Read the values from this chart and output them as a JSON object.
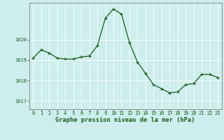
{
  "x": [
    0,
    1,
    2,
    3,
    4,
    5,
    6,
    7,
    8,
    9,
    10,
    11,
    12,
    13,
    14,
    15,
    16,
    17,
    18,
    19,
    20,
    21,
    22,
    23
  ],
  "y": [
    1019.1,
    1019.5,
    1019.35,
    1019.1,
    1019.05,
    1019.05,
    1019.15,
    1019.2,
    1019.7,
    1021.05,
    1021.5,
    1021.25,
    1019.85,
    1018.9,
    1018.35,
    1017.8,
    1017.6,
    1017.4,
    1017.45,
    1017.8,
    1017.85,
    1018.3,
    1018.3,
    1018.15
  ],
  "yticks": [
    1017,
    1018,
    1019,
    1020
  ],
  "xticks": [
    0,
    1,
    2,
    3,
    4,
    5,
    6,
    7,
    8,
    9,
    10,
    11,
    12,
    13,
    14,
    15,
    16,
    17,
    18,
    19,
    20,
    21,
    22,
    23
  ],
  "ylim": [
    1016.6,
    1021.8
  ],
  "xlim": [
    -0.5,
    23.5
  ],
  "line_color": "#1a5c1a",
  "marker_color": "#1a5c1a",
  "bg_color": "#cdeeed",
  "grid_color": "#ffffff",
  "xlabel": "Graphe pression niveau de la mer (hPa)",
  "xlabel_color": "#1a5c1a",
  "tick_color": "#1a5c1a",
  "axis_color": "#808080",
  "tick_fontsize": 5.0,
  "xlabel_fontsize": 6.2
}
